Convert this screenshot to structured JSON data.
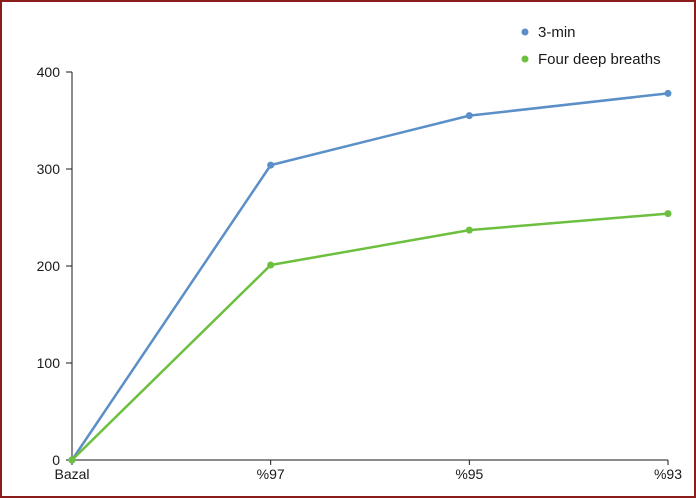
{
  "chart_data": {
    "type": "line",
    "categories": [
      "Bazal",
      "%97",
      "%95",
      "%93"
    ],
    "series": [
      {
        "name": "3-min",
        "values": [
          0,
          304,
          355,
          378
        ],
        "color": "#5b8fc7"
      },
      {
        "name": "Four deep breaths",
        "values": [
          0,
          201,
          237,
          254
        ],
        "color": "#6cbf3f"
      }
    ],
    "y_ticks": [
      0,
      100,
      200,
      300,
      400
    ],
    "ylim": [
      0,
      400
    ],
    "title": "",
    "xlabel": "",
    "ylabel": "",
    "grid": false,
    "legend": "top-right",
    "axis_color": "#1a1a1a",
    "frame_color": "#8b1c1c"
  }
}
